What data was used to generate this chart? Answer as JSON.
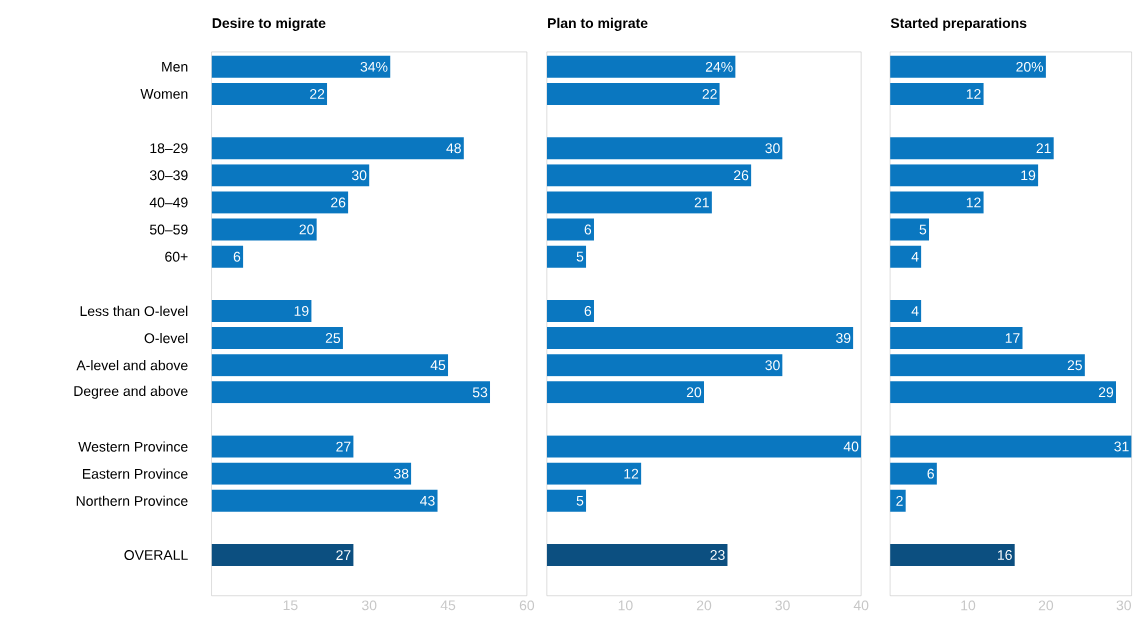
{
  "chart_data": [
    {
      "type": "bar",
      "orientation": "horizontal",
      "title": "Desire to migrate",
      "categories": [
        "Men",
        "Women",
        null,
        "18–29",
        "30–39",
        "40–49",
        "50–59",
        "60+",
        null,
        "Less than O-level",
        "O-level",
        "A-level and above",
        "Degree and above",
        null,
        "Western Province",
        "Eastern Province",
        "Northern Province",
        null,
        "OVERALL"
      ],
      "values": [
        34,
        22,
        null,
        48,
        30,
        26,
        20,
        6,
        null,
        19,
        25,
        45,
        53,
        null,
        27,
        38,
        43,
        null,
        27
      ],
      "value_labels": [
        "34%",
        "22",
        null,
        "48",
        "30",
        "26",
        "20",
        "6",
        null,
        "19",
        "25",
        "45",
        "53",
        null,
        "27",
        "38",
        "43",
        null,
        "27"
      ],
      "colors": [
        "#0a77c0",
        "#0a77c0",
        null,
        "#0a77c0",
        "#0a77c0",
        "#0a77c0",
        "#0a77c0",
        "#0a77c0",
        null,
        "#0a77c0",
        "#0a77c0",
        "#0a77c0",
        "#0a77c0",
        null,
        "#0a77c0",
        "#0a77c0",
        "#0a77c0",
        null,
        "#0c4f80"
      ],
      "xlim": [
        0,
        60
      ],
      "xticks": [
        15,
        30,
        45,
        60
      ]
    },
    {
      "type": "bar",
      "orientation": "horizontal",
      "title": "Plan to migrate",
      "categories": [
        null,
        null,
        null,
        null,
        null,
        null,
        null,
        null,
        null,
        null,
        null,
        null,
        null,
        null,
        null,
        null,
        null,
        null,
        null
      ],
      "values": [
        24,
        22,
        null,
        30,
        26,
        21,
        6,
        5,
        null,
        6,
        39,
        30,
        20,
        null,
        40,
        12,
        5,
        null,
        23
      ],
      "value_labels": [
        "24%",
        "22",
        null,
        "30",
        "26",
        "21",
        "6",
        "5",
        null,
        "6",
        "39",
        "30",
        "20",
        null,
        "40",
        "12",
        "5",
        null,
        "23"
      ],
      "colors": [
        "#0a77c0",
        "#0a77c0",
        null,
        "#0a77c0",
        "#0a77c0",
        "#0a77c0",
        "#0a77c0",
        "#0a77c0",
        null,
        "#0a77c0",
        "#0a77c0",
        "#0a77c0",
        "#0a77c0",
        null,
        "#0a77c0",
        "#0a77c0",
        "#0a77c0",
        null,
        "#0c4f80"
      ],
      "xlim": [
        0,
        40
      ],
      "xticks": [
        10,
        20,
        30,
        40
      ]
    },
    {
      "type": "bar",
      "orientation": "horizontal",
      "title": "Started preparations",
      "categories": [
        null,
        null,
        null,
        null,
        null,
        null,
        null,
        null,
        null,
        null,
        null,
        null,
        null,
        null,
        null,
        null,
        null,
        null,
        null
      ],
      "values": [
        20,
        12,
        null,
        21,
        19,
        12,
        5,
        4,
        null,
        4,
        17,
        25,
        29,
        null,
        31,
        6,
        2,
        null,
        16
      ],
      "value_labels": [
        "20%",
        "12",
        null,
        "21",
        "19",
        "12",
        "5",
        "4",
        null,
        "4",
        "17",
        "25",
        "29",
        null,
        "31",
        "6",
        "2",
        null,
        "16"
      ],
      "colors": [
        "#0a77c0",
        "#0a77c0",
        null,
        "#0a77c0",
        "#0a77c0",
        "#0a77c0",
        "#0a77c0",
        "#0a77c0",
        null,
        "#0a77c0",
        "#0a77c0",
        "#0a77c0",
        "#0a77c0",
        null,
        "#0a77c0",
        "#0a77c0",
        "#0a77c0",
        null,
        "#0c4f80"
      ],
      "xlim": [
        0,
        31
      ],
      "xticks": [
        10,
        20,
        30
      ]
    }
  ]
}
